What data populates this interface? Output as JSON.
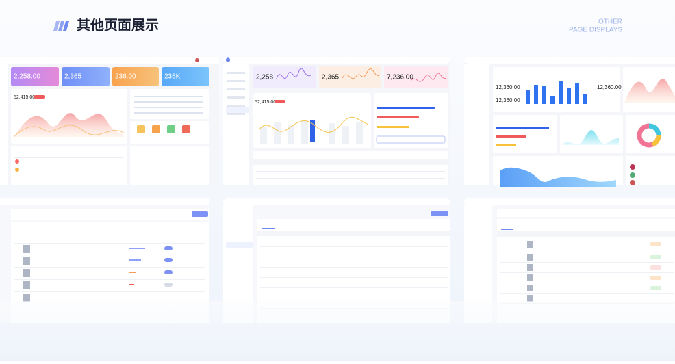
{
  "header": {
    "title": "其他页面展示",
    "subtitle_line1": "OTHER",
    "subtitle_line2": "PAGE DISPLAYS"
  },
  "panels": [
    {
      "cards": [
        "2,258.00",
        "2,365",
        "236.00",
        "236K"
      ],
      "chart_total": "52,415.00"
    },
    {
      "cards": [
        "2,258",
        "2,365",
        "7,236.00"
      ],
      "chart_total": "52,415.00"
    },
    {
      "cards": [
        "12,360.00",
        "12,360.00",
        "12,360.00"
      ]
    }
  ]
}
